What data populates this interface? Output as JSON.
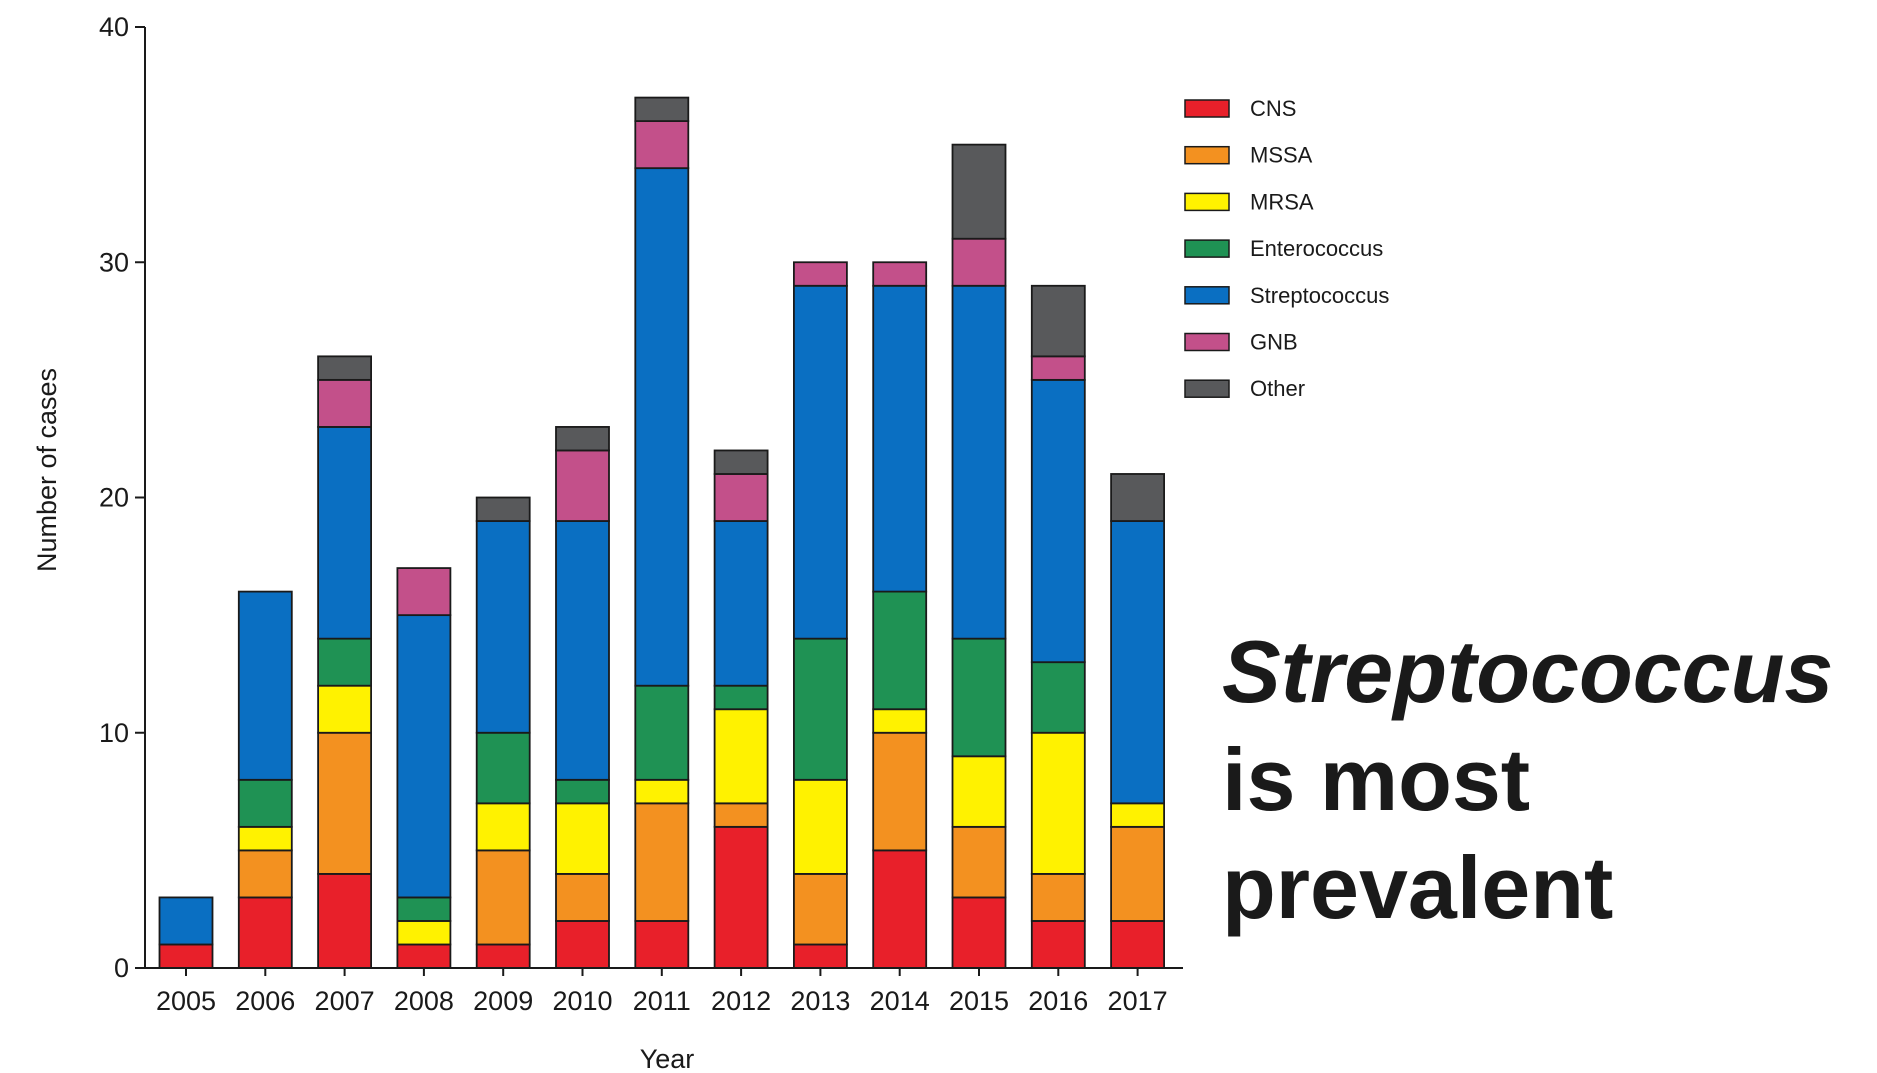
{
  "headline": {
    "line1": "Streptococcus",
    "line2": "is most",
    "line3": "prevalent"
  },
  "chart_data": {
    "type": "bar",
    "stacked": true,
    "xlabel": "Year",
    "ylabel": "Number of cases",
    "ylim": [
      0,
      40
    ],
    "yticks": [
      0,
      10,
      20,
      30,
      40
    ],
    "legend_position": "top-right",
    "categories": [
      "2005",
      "2006",
      "2007",
      "2008",
      "2009",
      "2010",
      "2011",
      "2012",
      "2013",
      "2014",
      "2015",
      "2016",
      "2017"
    ],
    "series": [
      {
        "name": "CNS",
        "color": "#e8202a",
        "values": [
          1,
          3,
          4,
          1,
          1,
          2,
          2,
          6,
          1,
          5,
          3,
          2,
          2
        ]
      },
      {
        "name": "MSSA",
        "color": "#f39120",
        "values": [
          0,
          2,
          6,
          0,
          4,
          2,
          5,
          1,
          3,
          5,
          3,
          2,
          4
        ]
      },
      {
        "name": "MRSA",
        "color": "#fff200",
        "values": [
          0,
          1,
          2,
          1,
          2,
          3,
          1,
          4,
          4,
          1,
          3,
          6,
          1
        ]
      },
      {
        "name": "Enterococcus",
        "color": "#1f9254",
        "values": [
          0,
          2,
          2,
          1,
          3,
          1,
          4,
          1,
          6,
          5,
          5,
          3,
          0
        ]
      },
      {
        "name": "Streptococcus",
        "color": "#0a6fc2",
        "values": [
          2,
          8,
          9,
          12,
          9,
          11,
          22,
          7,
          15,
          13,
          15,
          12,
          12
        ]
      },
      {
        "name": "GNB",
        "color": "#c3508a",
        "values": [
          0,
          0,
          2,
          2,
          0,
          3,
          2,
          2,
          1,
          1,
          2,
          1,
          0
        ]
      },
      {
        "name": "Other",
        "color": "#58595b",
        "values": [
          0,
          0,
          1,
          0,
          1,
          1,
          1,
          1,
          0,
          0,
          4,
          3,
          2
        ]
      }
    ]
  }
}
